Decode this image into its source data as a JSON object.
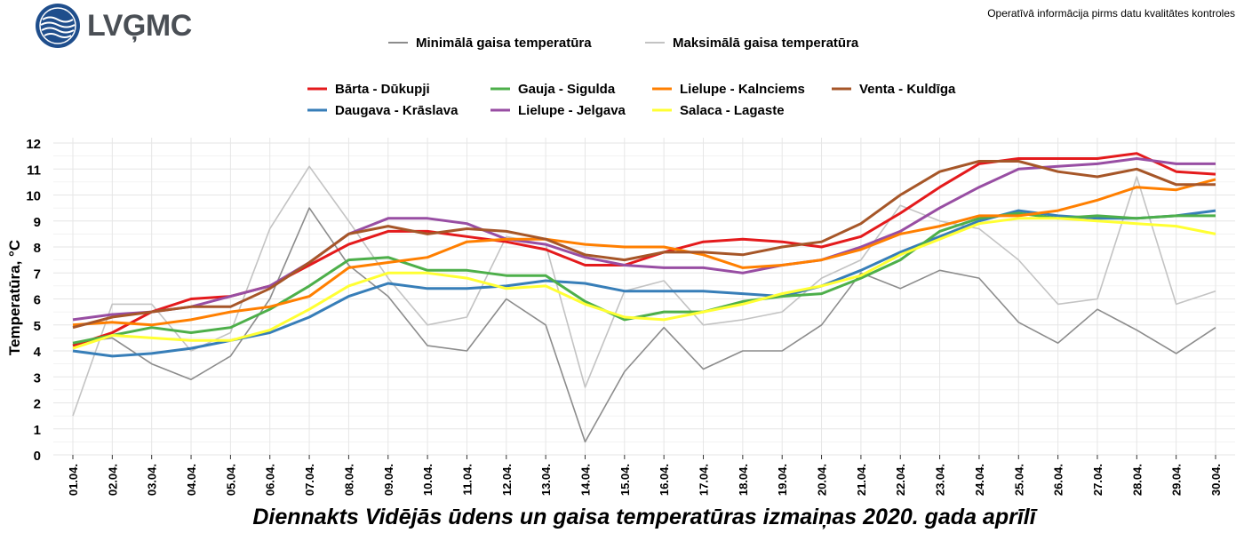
{
  "header": {
    "logo_text": "LVĢMC",
    "disclaimer": "Operatīvā informācija pirms datu kvalitātes kontroles"
  },
  "colors": {
    "min_air": "#8c8c8c",
    "max_air": "#c3c3c3",
    "logo_blue": "#1f4e8c",
    "grid": "#e6e6e6"
  },
  "chart_data": {
    "type": "line",
    "title": "Diennakts Vidējās ūdens un gaisa temperatūras izmaiņas 2020. gada aprīlī",
    "xlabel": "",
    "ylabel": "Temperatūra, °C",
    "ylim": [
      0,
      12
    ],
    "yticks": [
      "0",
      "1",
      "2",
      "3",
      "4",
      "5",
      "6",
      "7",
      "8",
      "9",
      "10",
      "11",
      "12"
    ],
    "grid": true,
    "legend_position": "top-center",
    "categories": [
      "01.04.",
      "02.04.",
      "03.04.",
      "04.04.",
      "05.04.",
      "06.04.",
      "07.04.",
      "08.04.",
      "09.04.",
      "10.04.",
      "11.04.",
      "12.04.",
      "13.04.",
      "14.04.",
      "15.04.",
      "16.04.",
      "17.04.",
      "18.04.",
      "19.04.",
      "20.04.",
      "21.04.",
      "22.04.",
      "23.04.",
      "24.04.",
      "25.04.",
      "26.04.",
      "27.04.",
      "28.04.",
      "29.04.",
      "30.04."
    ],
    "air_series": [
      {
        "name": "Minimālā gaisa temperatūra",
        "color": "#8c8c8c",
        "values": [
          4.3,
          4.5,
          3.5,
          2.9,
          3.8,
          6.0,
          9.5,
          7.3,
          6.1,
          4.2,
          4.0,
          6.0,
          5.0,
          0.5,
          3.2,
          4.9,
          3.3,
          4.0,
          4.0,
          5.0,
          7.0,
          6.4,
          7.1,
          6.8,
          5.1,
          4.3,
          5.6,
          4.8,
          3.9,
          4.9
        ]
      },
      {
        "name": "Maksimālā gaisa temperatūra",
        "color": "#c3c3c3",
        "values": [
          1.5,
          5.8,
          5.8,
          4.0,
          4.7,
          8.7,
          11.1,
          9.0,
          6.8,
          5.0,
          5.3,
          8.4,
          8.1,
          2.6,
          6.3,
          6.7,
          5.0,
          5.2,
          5.5,
          6.8,
          7.5,
          9.6,
          9.0,
          8.7,
          7.5,
          5.8,
          6.0,
          10.7,
          5.8,
          6.3
        ]
      }
    ],
    "series": [
      {
        "name": "Bārta - Dūkupji",
        "color": "#e41a1c",
        "values": [
          4.2,
          4.7,
          5.5,
          6.0,
          6.1,
          6.5,
          7.3,
          8.1,
          8.6,
          8.6,
          8.4,
          8.2,
          7.9,
          7.3,
          7.3,
          7.8,
          8.2,
          8.3,
          8.2,
          8.0,
          8.4,
          9.3,
          10.3,
          11.2,
          11.4,
          11.4,
          11.4,
          11.6,
          10.9,
          10.8
        ]
      },
      {
        "name": "Daugava - Krāslava",
        "color": "#377eb8",
        "values": [
          4.0,
          3.8,
          3.9,
          4.1,
          4.4,
          4.7,
          5.3,
          6.1,
          6.6,
          6.4,
          6.4,
          6.5,
          6.7,
          6.6,
          6.3,
          6.3,
          6.3,
          6.2,
          6.1,
          6.5,
          7.1,
          7.8,
          8.4,
          9.0,
          9.4,
          9.2,
          9.1,
          9.1,
          9.2,
          9.4
        ]
      },
      {
        "name": "Gauja - Sigulda",
        "color": "#4daf4a",
        "values": [
          4.3,
          4.6,
          4.9,
          4.7,
          4.9,
          5.6,
          6.5,
          7.5,
          7.6,
          7.1,
          7.1,
          6.9,
          6.9,
          5.9,
          5.2,
          5.5,
          5.5,
          5.9,
          6.1,
          6.2,
          6.8,
          7.5,
          8.6,
          9.1,
          9.3,
          9.1,
          9.2,
          9.1,
          9.2,
          9.2
        ]
      },
      {
        "name": "Lielupe - Jelgava",
        "color": "#984ea3",
        "values": [
          5.2,
          5.4,
          5.5,
          5.7,
          6.1,
          6.5,
          7.4,
          8.5,
          9.1,
          9.1,
          8.9,
          8.3,
          8.1,
          7.6,
          7.3,
          7.2,
          7.2,
          7.0,
          7.3,
          7.5,
          8.0,
          8.6,
          9.5,
          10.3,
          11.0,
          11.1,
          11.2,
          11.4,
          11.2,
          11.2
        ]
      },
      {
        "name": "Lielupe - Kalnciems",
        "color": "#ff7f00",
        "values": [
          5.0,
          5.1,
          5.0,
          5.2,
          5.5,
          5.7,
          6.1,
          7.2,
          7.4,
          7.6,
          8.2,
          8.3,
          8.3,
          8.1,
          8.0,
          8.0,
          7.7,
          7.2,
          7.3,
          7.5,
          7.9,
          8.5,
          8.8,
          9.2,
          9.2,
          9.4,
          9.8,
          10.3,
          10.2,
          10.6
        ]
      },
      {
        "name": "Salaca - Lagaste",
        "color": "#ffff33",
        "values": [
          4.1,
          4.6,
          4.5,
          4.4,
          4.4,
          4.8,
          5.6,
          6.5,
          7.0,
          7.0,
          6.8,
          6.4,
          6.5,
          5.8,
          5.3,
          5.2,
          5.5,
          5.8,
          6.2,
          6.5,
          6.9,
          7.7,
          8.3,
          8.9,
          9.1,
          9.1,
          9.0,
          8.9,
          8.8,
          8.5
        ]
      },
      {
        "name": "Venta - Kuldīga",
        "color": "#a65628",
        "values": [
          4.9,
          5.3,
          5.5,
          5.7,
          5.7,
          6.4,
          7.4,
          8.5,
          8.8,
          8.5,
          8.7,
          8.6,
          8.3,
          7.7,
          7.5,
          7.8,
          7.8,
          7.7,
          8.0,
          8.2,
          8.9,
          10.0,
          10.9,
          11.3,
          11.3,
          10.9,
          10.7,
          11.0,
          10.4,
          10.4
        ]
      }
    ]
  }
}
